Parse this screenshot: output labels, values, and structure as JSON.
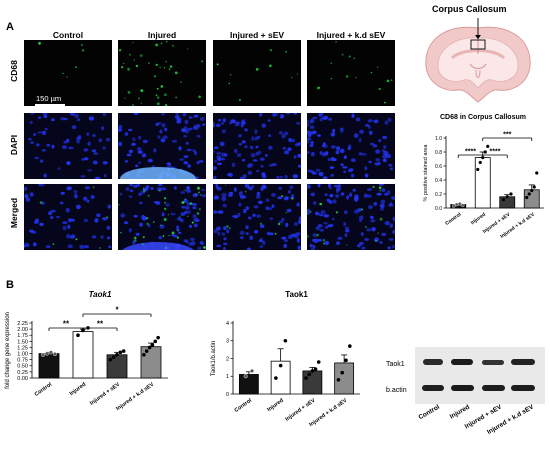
{
  "panel_a": {
    "letter": "A",
    "columns": [
      "Control",
      "Injured",
      "Injured + sEV",
      "Injured + k.d sEV"
    ],
    "rows": [
      "CD68",
      "DAPI",
      "Merged"
    ],
    "scale_bar": "150 µm",
    "brain_title": "Corpus Callosum"
  },
  "panel_b": {
    "letter": "B",
    "blot_labels": [
      "Taok1",
      "b.actin"
    ],
    "blot_lanes": [
      "Control",
      "Injured",
      "Injured + sEV",
      "Injured + k.d sEV"
    ]
  },
  "colors": {
    "control": "#111111",
    "injured": "#ffffff",
    "sev": "#3a3a3a",
    "kd": "#8c8c8c",
    "nucleus": "#2233ee",
    "cd68": "#22cc44"
  },
  "chart_data": [
    {
      "type": "bar",
      "title": "CD68 in Corpus Callosum",
      "categories": [
        "Control",
        "Injured",
        "Injured + sEV",
        "Injured + k.d sEV"
      ],
      "values": [
        0.05,
        0.72,
        0.16,
        0.26
      ],
      "errors": [
        0.01,
        0.08,
        0.03,
        0.07
      ],
      "points": [
        [
          0.03,
          0.05,
          0.06,
          0.04
        ],
        [
          0.55,
          0.65,
          0.72,
          0.8,
          0.88
        ],
        [
          0.12,
          0.16,
          0.2
        ],
        [
          0.15,
          0.2,
          0.25,
          0.3,
          0.5
        ]
      ],
      "ylabel": "% positive stained area",
      "yticks": [
        "0.0",
        "0.2",
        "0.4",
        "0.6",
        "0.8",
        "1.0"
      ],
      "ylim": [
        0,
        1.0
      ],
      "significance": [
        "****",
        "****",
        "***"
      ]
    },
    {
      "type": "bar",
      "title": "Taok1",
      "categories": [
        "Control",
        "Injured",
        "Injured + sEV",
        "Injured + k.d sEV"
      ],
      "values": [
        1.0,
        1.9,
        0.95,
        1.28
      ],
      "errors": [
        0.05,
        0.1,
        0.1,
        0.15
      ],
      "points": [
        [
          0.95,
          1.0,
          1.05,
          0.98
        ],
        [
          1.75,
          1.95,
          2.05
        ],
        [
          0.75,
          0.85,
          0.95,
          1.05,
          1.1
        ],
        [
          0.95,
          1.1,
          1.25,
          1.35,
          1.5,
          1.65
        ]
      ],
      "ylabel": "fold change gene expression",
      "yticks": [
        "0.00",
        "0.25",
        "0.50",
        "0.75",
        "1.00",
        "1.25",
        "1.50",
        "1.75",
        "2.00",
        "2.25"
      ],
      "ylim": [
        0,
        2.25
      ],
      "significance": [
        "**",
        "**",
        "*"
      ]
    },
    {
      "type": "bar",
      "title": "Taok1",
      "categories": [
        "Control",
        "Injured",
        "Injured + sEV",
        "Injured + k.d sEV"
      ],
      "values": [
        1.1,
        1.85,
        1.3,
        1.75
      ],
      "errors": [
        0.15,
        0.7,
        0.2,
        0.45
      ],
      "points": [
        [
          1.0,
          1.3
        ],
        [
          0.9,
          1.6,
          3.0
        ],
        [
          0.9,
          1.1,
          1.3,
          1.4,
          1.8
        ],
        [
          0.8,
          1.2,
          1.9,
          2.7
        ]
      ],
      "ylabel": "Taok1/b.actin",
      "yticks": [
        "0",
        "1",
        "2",
        "3",
        "4"
      ],
      "ylim": [
        0,
        4
      ]
    }
  ]
}
